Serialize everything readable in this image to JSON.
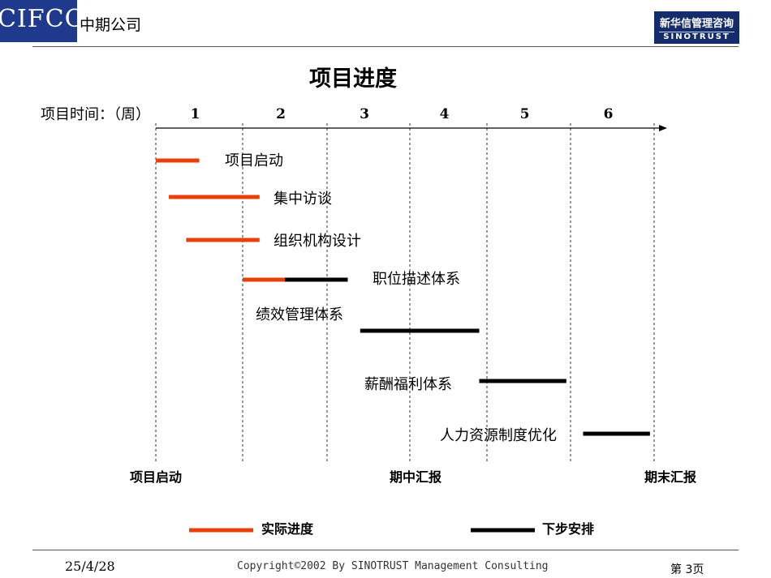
{
  "header": {
    "logo_text": "CIFCO",
    "company_name": "中期公司",
    "brand_cn": "新华信管理咨询",
    "brand_en": "SINOTRUST"
  },
  "title": "项目进度",
  "time_label": "项目时间：（周）",
  "weeks": [
    "1",
    "2",
    "3",
    "4",
    "5",
    "6"
  ],
  "tasks": [
    {
      "name": "项目启动",
      "actual": [
        0,
        0.5
      ],
      "planned": null
    },
    {
      "name": "集中访谈",
      "actual": [
        0.15,
        1.2
      ],
      "planned": null
    },
    {
      "name": "组织机构设计",
      "actual": [
        0.35,
        1.2
      ],
      "planned": null
    },
    {
      "name": "职位描述体系",
      "actual": [
        1.0,
        1.5
      ],
      "planned": [
        1.5,
        2.25
      ]
    },
    {
      "name": "绩效管理体系",
      "actual": null,
      "planned": [
        2.4,
        3.9
      ]
    },
    {
      "name": "薪酬福利体系",
      "actual": null,
      "planned": [
        3.9,
        4.95
      ]
    },
    {
      "name": "人力资源制度优化",
      "actual": null,
      "planned": [
        5.15,
        5.95
      ]
    }
  ],
  "milestones": [
    "项目启动",
    "期中汇报",
    "期末汇报"
  ],
  "legend": {
    "actual": "实际进度",
    "planned": "下步安排"
  },
  "colors": {
    "actual": "#e8400a",
    "planned": "#000000",
    "brand": "#1f3a8c"
  },
  "footer": {
    "date": "25/4/28",
    "copyright": "Copyright©2002 By SINOTRUST Management Consulting",
    "page": "第 3页"
  }
}
